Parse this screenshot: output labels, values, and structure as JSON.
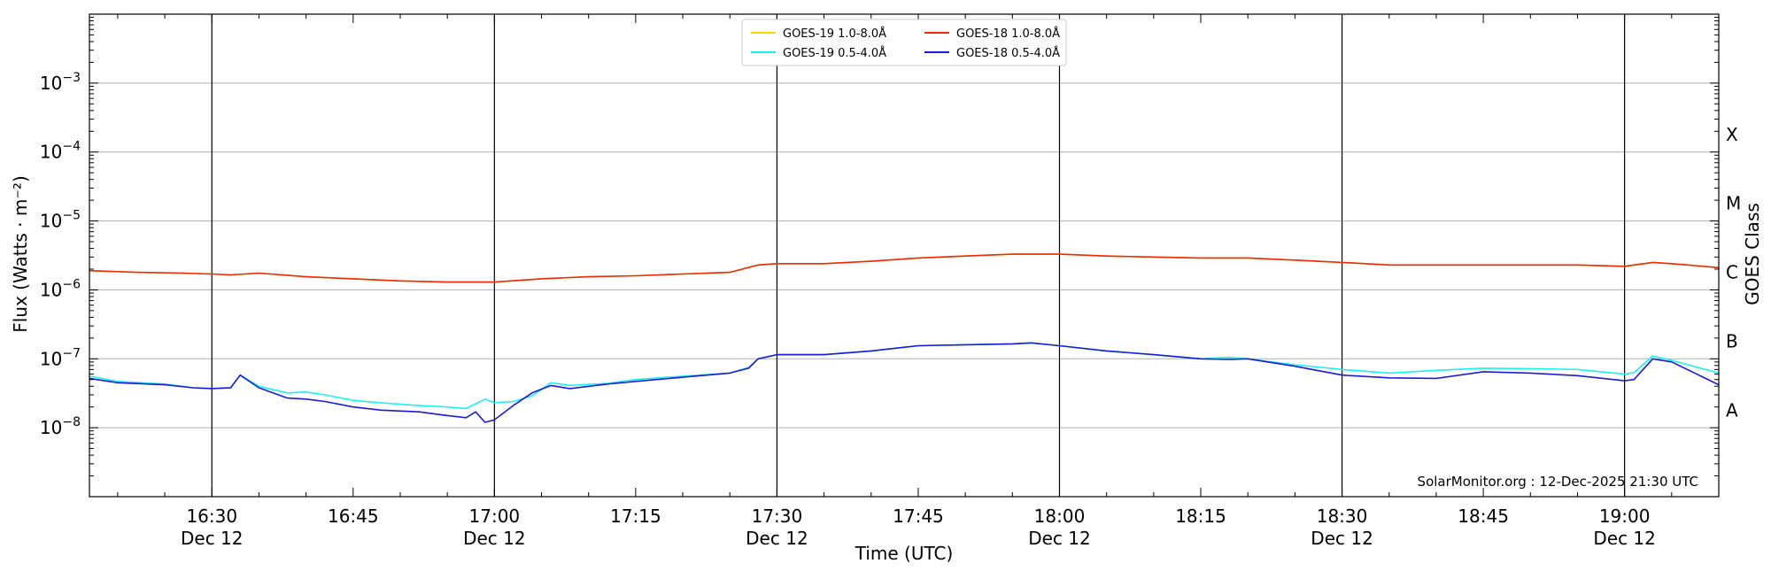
{
  "chart_data": {
    "type": "line",
    "xlabel": "Time (UTC)",
    "ylabel": "Flux (Watts · m⁻²)",
    "y2label": "GOES Class",
    "yscale": "log",
    "ylim": [
      1e-09,
      0.01
    ],
    "xlim": [
      "16:17",
      "19:10"
    ],
    "grid": "horizontal at decades, vertical at half-hours",
    "legend_position": "top-center",
    "credit": "SolarMonitor.org : 12-Dec-2025 21:30 UTC",
    "x_ticks": [
      "16:30",
      "16:45",
      "17:00",
      "17:15",
      "17:30",
      "17:45",
      "18:00",
      "18:15",
      "18:30",
      "18:45",
      "19:00"
    ],
    "x_tick_date": "Dec 12",
    "x_ticks_with_date": [
      "16:30",
      "17:00",
      "17:30",
      "18:00",
      "18:30",
      "19:00"
    ],
    "y_ticks": [
      {
        "value": 0.001,
        "base": "10",
        "exp": "−3"
      },
      {
        "value": 0.0001,
        "base": "10",
        "exp": "−4"
      },
      {
        "value": 1e-05,
        "base": "10",
        "exp": "−5"
      },
      {
        "value": 1e-06,
        "base": "10",
        "exp": "−6"
      },
      {
        "value": 1e-07,
        "base": "10",
        "exp": "−7"
      },
      {
        "value": 1e-08,
        "base": "10",
        "exp": "−8"
      }
    ],
    "goes_classes": [
      {
        "label": "X",
        "value": 0.00018
      },
      {
        "label": "M",
        "value": 1.8e-05
      },
      {
        "label": "C",
        "value": 1.8e-06
      },
      {
        "label": "B",
        "value": 1.8e-07
      },
      {
        "label": "A",
        "value": 1.8e-08
      }
    ],
    "series": [
      {
        "name": "GOES-19 1.0-8.0Å",
        "color": "#ffd700",
        "x": [
          "16:17",
          "16:22",
          "16:27",
          "16:30",
          "16:32",
          "16:35",
          "16:40",
          "16:45",
          "16:50",
          "16:55",
          "17:00",
          "17:05",
          "17:10",
          "17:15",
          "17:20",
          "17:25",
          "17:28",
          "17:30",
          "17:35",
          "17:40",
          "17:45",
          "17:50",
          "17:55",
          "18:00",
          "18:05",
          "18:10",
          "18:15",
          "18:20",
          "18:25",
          "18:30",
          "18:35",
          "18:40",
          "18:45",
          "18:50",
          "18:55",
          "19:00",
          "19:03",
          "19:05",
          "19:10"
        ],
        "values": [
          1.9e-06,
          1.8e-06,
          1.75e-06,
          1.7e-06,
          1.65e-06,
          1.75e-06,
          1.55e-06,
          1.45e-06,
          1.35e-06,
          1.3e-06,
          1.3e-06,
          1.45e-06,
          1.55e-06,
          1.6e-06,
          1.7e-06,
          1.8e-06,
          2.3e-06,
          2.4e-06,
          2.4e-06,
          2.6e-06,
          2.9e-06,
          3.1e-06,
          3.3e-06,
          3.3e-06,
          3.1e-06,
          3e-06,
          2.9e-06,
          2.9e-06,
          2.7e-06,
          2.5e-06,
          2.3e-06,
          2.3e-06,
          2.3e-06,
          2.3e-06,
          2.3e-06,
          2.2e-06,
          2.5e-06,
          2.4e-06,
          2.1e-06
        ]
      },
      {
        "name": "GOES-18 1.0-8.0Å",
        "color": "#ee2a0a",
        "x": [
          "16:17",
          "16:22",
          "16:27",
          "16:30",
          "16:32",
          "16:35",
          "16:40",
          "16:45",
          "16:50",
          "16:55",
          "17:00",
          "17:05",
          "17:10",
          "17:15",
          "17:20",
          "17:25",
          "17:28",
          "17:30",
          "17:35",
          "17:40",
          "17:45",
          "17:50",
          "17:55",
          "18:00",
          "18:05",
          "18:10",
          "18:15",
          "18:20",
          "18:25",
          "18:30",
          "18:35",
          "18:40",
          "18:45",
          "18:50",
          "18:55",
          "19:00",
          "19:03",
          "19:05",
          "19:10"
        ],
        "values": [
          1.9e-06,
          1.8e-06,
          1.75e-06,
          1.7e-06,
          1.65e-06,
          1.75e-06,
          1.55e-06,
          1.45e-06,
          1.35e-06,
          1.3e-06,
          1.3e-06,
          1.45e-06,
          1.55e-06,
          1.6e-06,
          1.7e-06,
          1.8e-06,
          2.3e-06,
          2.4e-06,
          2.4e-06,
          2.6e-06,
          2.9e-06,
          3.1e-06,
          3.3e-06,
          3.3e-06,
          3.1e-06,
          3e-06,
          2.9e-06,
          2.9e-06,
          2.7e-06,
          2.5e-06,
          2.3e-06,
          2.3e-06,
          2.3e-06,
          2.3e-06,
          2.3e-06,
          2.2e-06,
          2.5e-06,
          2.4e-06,
          2.1e-06
        ]
      },
      {
        "name": "GOES-19 0.5-4.0Å",
        "color": "#19f2f2",
        "x": [
          "16:17",
          "16:20",
          "16:25",
          "16:28",
          "16:30",
          "16:32",
          "16:33",
          "16:35",
          "16:38",
          "16:40",
          "16:42",
          "16:45",
          "16:48",
          "16:52",
          "16:55",
          "16:57",
          "16:59",
          "17:00",
          "17:02",
          "17:04",
          "17:06",
          "17:08",
          "17:12",
          "17:15",
          "17:20",
          "17:25",
          "17:27",
          "17:28",
          "17:30",
          "17:35",
          "17:40",
          "17:45",
          "17:50",
          "17:55",
          "17:57",
          "18:00",
          "18:05",
          "18:10",
          "18:15",
          "18:18",
          "18:20",
          "18:25",
          "18:30",
          "18:35",
          "18:40",
          "18:45",
          "18:50",
          "18:55",
          "19:00",
          "19:01",
          "19:03",
          "19:05",
          "19:10"
        ],
        "values": [
          5.6e-08,
          4.7e-08,
          4.3e-08,
          3.8e-08,
          3.7e-08,
          3.8e-08,
          5.8e-08,
          4e-08,
          3.2e-08,
          3.3e-08,
          3e-08,
          2.5e-08,
          2.3e-08,
          2.1e-08,
          2e-08,
          1.9e-08,
          2.6e-08,
          2.3e-08,
          2.4e-08,
          2.9e-08,
          4.5e-08,
          4.1e-08,
          4.4e-08,
          5e-08,
          5.6e-08,
          6.2e-08,
          7.5e-08,
          1e-07,
          1.15e-07,
          1.15e-07,
          1.3e-07,
          1.55e-07,
          1.6e-07,
          1.65e-07,
          1.7e-07,
          1.55e-07,
          1.3e-07,
          1.15e-07,
          1e-07,
          1.05e-07,
          1e-07,
          8.2e-08,
          7e-08,
          6.2e-08,
          6.8e-08,
          7.3e-08,
          7.2e-08,
          7e-08,
          6e-08,
          6.3e-08,
          1.1e-07,
          9.5e-08,
          6.2e-08
        ]
      },
      {
        "name": "GOES-18 0.5-4.0Å",
        "color": "#1b1bdb",
        "x": [
          "16:17",
          "16:20",
          "16:25",
          "16:28",
          "16:30",
          "16:32",
          "16:33",
          "16:35",
          "16:38",
          "16:40",
          "16:42",
          "16:45",
          "16:48",
          "16:52",
          "16:55",
          "16:57",
          "16:58",
          "16:59",
          "17:00",
          "17:02",
          "17:04",
          "17:06",
          "17:08",
          "17:12",
          "17:15",
          "17:20",
          "17:25",
          "17:27",
          "17:28",
          "17:30",
          "17:35",
          "17:40",
          "17:45",
          "17:50",
          "17:55",
          "17:57",
          "18:00",
          "18:05",
          "18:10",
          "18:15",
          "18:18",
          "18:20",
          "18:25",
          "18:30",
          "18:35",
          "18:40",
          "18:45",
          "18:50",
          "18:55",
          "19:00",
          "19:01",
          "19:03",
          "19:05",
          "19:10"
        ],
        "values": [
          5.2e-08,
          4.5e-08,
          4.2e-08,
          3.8e-08,
          3.7e-08,
          3.8e-08,
          5.8e-08,
          3.8e-08,
          2.7e-08,
          2.6e-08,
          2.4e-08,
          2e-08,
          1.8e-08,
          1.7e-08,
          1.5e-08,
          1.4e-08,
          1.7e-08,
          1.2e-08,
          1.3e-08,
          2.1e-08,
          3.2e-08,
          4.1e-08,
          3.7e-08,
          4.3e-08,
          4.7e-08,
          5.4e-08,
          6.2e-08,
          7.3e-08,
          1e-07,
          1.15e-07,
          1.15e-07,
          1.3e-07,
          1.55e-07,
          1.6e-07,
          1.65e-07,
          1.7e-07,
          1.55e-07,
          1.3e-07,
          1.15e-07,
          1e-07,
          9.8e-08,
          1e-07,
          7.8e-08,
          5.8e-08,
          5.3e-08,
          5.2e-08,
          6.5e-08,
          6.2e-08,
          5.7e-08,
          4.8e-08,
          5e-08,
          1e-07,
          9e-08,
          4.2e-08
        ]
      }
    ]
  }
}
